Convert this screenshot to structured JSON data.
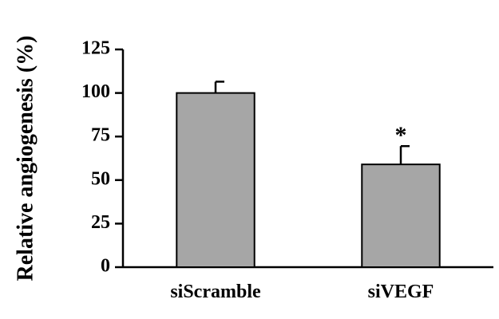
{
  "chart_data": {
    "type": "bar",
    "categories": [
      "siScramble",
      "siVEGF"
    ],
    "values": [
      100,
      59
    ],
    "error": [
      6.5,
      10.5
    ],
    "annotations": [
      "",
      "*"
    ],
    "title": "",
    "xlabel": "",
    "ylabel": "Relative angiogenesis (%)",
    "ylim": [
      0,
      125
    ],
    "yticks": [
      0,
      25,
      50,
      75,
      100,
      125
    ],
    "grid": false,
    "bar_color": "#a6a6a6",
    "edge_color": "#000000"
  }
}
